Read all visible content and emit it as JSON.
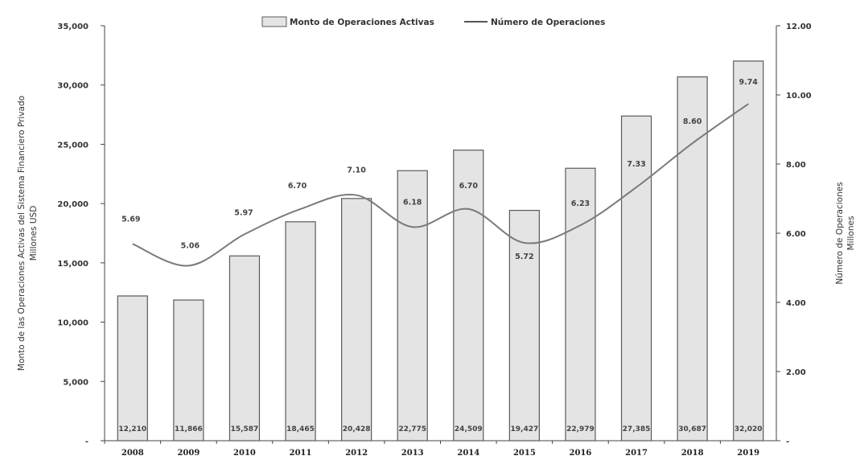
{
  "chart_data": {
    "type": "bar+line",
    "categories": [
      "2008",
      "2009",
      "2010",
      "2011",
      "2012",
      "2013",
      "2014",
      "2015",
      "2016",
      "2017",
      "2018",
      "2019"
    ],
    "series": [
      {
        "name": "Monto de Operaciones Activas",
        "type": "bar",
        "axis": "left",
        "values": [
          12210,
          11866,
          15587,
          18465,
          20428,
          22775,
          24509,
          19427,
          22979,
          27385,
          30687,
          32020
        ],
        "labels": [
          "12,210",
          "11,866",
          "15,587",
          "18,465",
          "20,428",
          "22,775",
          "24,509",
          "19,427",
          "22,979",
          "27,385",
          "30,687",
          "32,020"
        ],
        "color": "#e4e4e4",
        "stroke": "#5a5a5a"
      },
      {
        "name": "Número de Operaciones",
        "type": "line",
        "axis": "right",
        "values": [
          5.69,
          5.06,
          5.97,
          6.7,
          7.1,
          6.18,
          6.7,
          5.72,
          6.23,
          7.33,
          8.6,
          9.74
        ],
        "labels": [
          "5.69",
          "5.06",
          "5.97",
          "6.70",
          "7.10",
          "6.18",
          "6.70",
          "5.72",
          "6.23",
          "7.33",
          "8.60",
          "9.74"
        ],
        "color": "#7a7a7a"
      }
    ],
    "y_left": {
      "label_line1": "Monto de las Operaciones Activas del Sistema Financiero Privado",
      "label_line2": "Millones USD",
      "ylim": [
        0,
        35000
      ],
      "ticks": [
        0,
        5000,
        10000,
        15000,
        20000,
        25000,
        30000,
        35000
      ],
      "tick_labels": [
        "-",
        "5,000",
        "10,000",
        "15,000",
        "20,000",
        "25,000",
        "30,000",
        "35,000"
      ]
    },
    "y_right": {
      "label_line1": "Número de Operaciones",
      "label_line2": "Millones",
      "ylim": [
        0,
        12
      ],
      "ticks": [
        0,
        2,
        4,
        6,
        8,
        10,
        12
      ],
      "tick_labels": [
        "-",
        "2.00",
        "4.00",
        "6.00",
        "8.00",
        "10.00",
        "12.00"
      ]
    },
    "legend": {
      "position": "top-center"
    },
    "grid": false
  }
}
